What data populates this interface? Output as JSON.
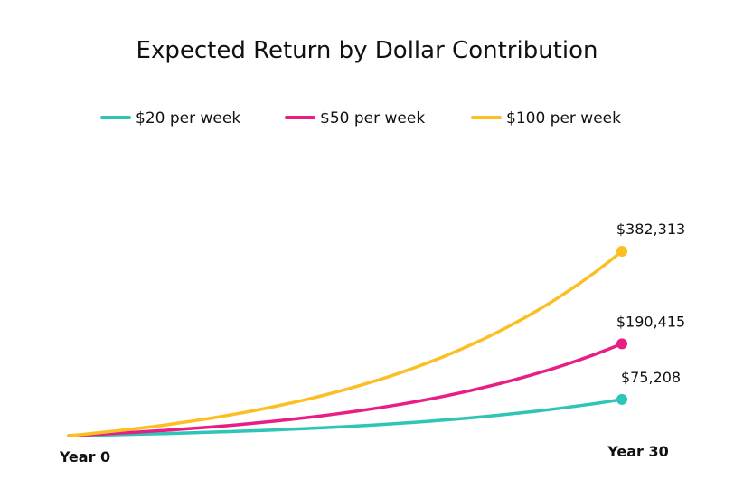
{
  "chart_data": {
    "type": "line",
    "title": "Expected Return by Dollar Contribution",
    "xlabel": "",
    "ylabel": "",
    "x_tick_labels": [
      "Year 0",
      "Year 30"
    ],
    "x": [
      0,
      30
    ],
    "ylim": [
      0,
      400000
    ],
    "grid": false,
    "legend_position": "top",
    "series": [
      {
        "name": "$20 per week",
        "color": "#2ec4b6",
        "start_value": 0,
        "end_value": 75208,
        "end_label": "$75,208"
      },
      {
        "name": "$50 per week",
        "color": "#e91e84",
        "start_value": 0,
        "end_value": 190415,
        "end_label": "$190,415"
      },
      {
        "name": "$100 per week",
        "color": "#fbbf24",
        "start_value": 0,
        "end_value": 382313,
        "end_label": "$382,313"
      }
    ]
  }
}
